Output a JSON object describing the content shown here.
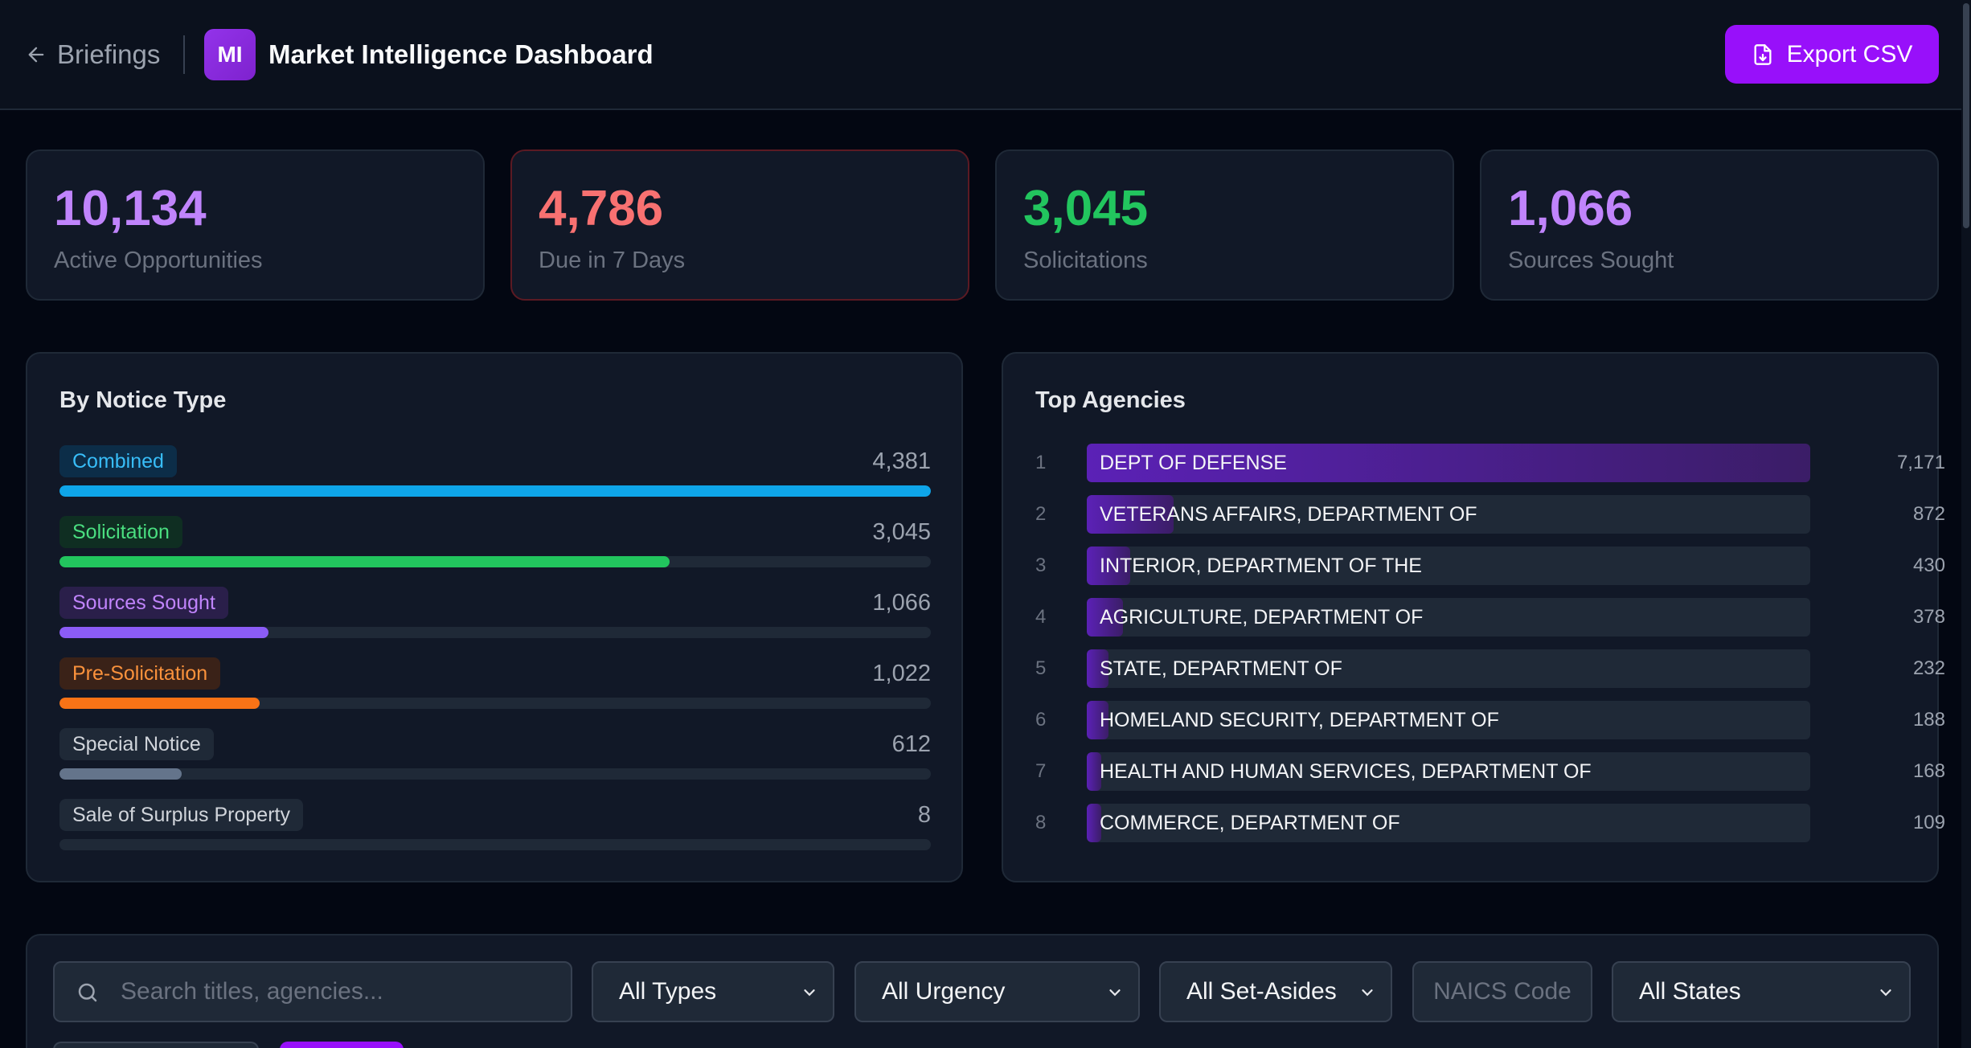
{
  "header": {
    "back_label": "Briefings",
    "logo_text": "MI",
    "title": "Market Intelligence Dashboard",
    "export_label": "Export CSV"
  },
  "stats": [
    {
      "value": "10,134",
      "label": "Active Opportunities",
      "color": "#c084fc"
    },
    {
      "value": "4,786",
      "label": "Due in 7 Days",
      "color": "#f87171"
    },
    {
      "value": "3,045",
      "label": "Solicitations",
      "color": "#22c55e"
    },
    {
      "value": "1,066",
      "label": "Sources Sought",
      "color": "#c084fc"
    }
  ],
  "notice_types": {
    "title": "By Notice Type",
    "items": [
      {
        "label": "Combined",
        "count": "4,381",
        "fraction": 1.0,
        "color": "#0ea5e9",
        "pill_bg": "#0c2d48",
        "text_color": "#38bdf8"
      },
      {
        "label": "Solicitation",
        "count": "3,045",
        "fraction": 0.7,
        "color": "#22c55e",
        "pill_bg": "#0f2e22",
        "text_color": "#4ade80"
      },
      {
        "label": "Sources Sought",
        "count": "1,066",
        "fraction": 0.24,
        "color": "#8b5cf6",
        "pill_bg": "#2a1f4a",
        "text_color": "#c084fc"
      },
      {
        "label": "Pre-Solicitation",
        "count": "1,022",
        "fraction": 0.23,
        "color": "#f97316",
        "pill_bg": "#3a2218",
        "text_color": "#fb923c"
      },
      {
        "label": "Special Notice",
        "count": "612",
        "fraction": 0.14,
        "color": "#64748b",
        "pill_bg": "#1f2937",
        "text_color": "#d1d5db"
      },
      {
        "label": "Sale of Surplus Property",
        "count": "8",
        "fraction": 0.0,
        "color": "#64748b",
        "pill_bg": "#1f2937",
        "text_color": "#d1d5db"
      }
    ]
  },
  "agencies": {
    "title": "Top Agencies",
    "items": [
      {
        "rank": "1",
        "name": "DEPT OF DEFENSE",
        "count": "7,171",
        "fraction": 1.0
      },
      {
        "rank": "2",
        "name": "VETERANS AFFAIRS, DEPARTMENT OF",
        "count": "872",
        "fraction": 0.12
      },
      {
        "rank": "3",
        "name": "INTERIOR, DEPARTMENT OF THE",
        "count": "430",
        "fraction": 0.06
      },
      {
        "rank": "4",
        "name": "AGRICULTURE, DEPARTMENT OF",
        "count": "378",
        "fraction": 0.05
      },
      {
        "rank": "5",
        "name": "STATE, DEPARTMENT OF",
        "count": "232",
        "fraction": 0.03
      },
      {
        "rank": "6",
        "name": "HOMELAND SECURITY, DEPARTMENT OF",
        "count": "188",
        "fraction": 0.03
      },
      {
        "rank": "7",
        "name": "HEALTH AND HUMAN SERVICES, DEPARTMENT OF",
        "count": "168",
        "fraction": 0.02
      },
      {
        "rank": "8",
        "name": "COMMERCE, DEPARTMENT OF",
        "count": "109",
        "fraction": 0.02
      }
    ]
  },
  "filters": {
    "search_placeholder": "Search titles, agencies...",
    "type": "All Types",
    "urgency": "All Urgency",
    "set_aside": "All Set-Asides",
    "naics_placeholder": "NAICS Code",
    "state": "All States"
  },
  "icons": {
    "back": "arrow-left-icon",
    "export": "file-download-icon",
    "search": "search-icon",
    "chevron": "chevron-down-icon"
  }
}
